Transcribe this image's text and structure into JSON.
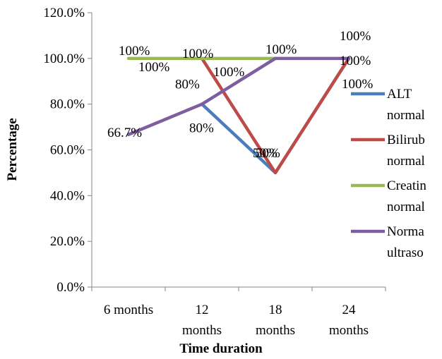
{
  "chart_data": {
    "type": "line",
    "categories": [
      "6 months",
      "12 months",
      "18 months",
      "24 months"
    ],
    "category_label_lines": [
      [
        "6 months"
      ],
      [
        "12",
        "months"
      ],
      [
        "18",
        "months"
      ],
      [
        "24",
        "months"
      ]
    ],
    "xlabel": "Time duration",
    "ylabel": "Percentage",
    "ylim": [
      0,
      120
    ],
    "yticks": [
      0,
      20,
      40,
      60,
      80,
      100,
      120
    ],
    "ytick_labels": [
      "0.0%",
      "20.0%",
      "40.0%",
      "60.0%",
      "80.0%",
      "100.0%",
      "120.0%"
    ],
    "grid": false,
    "legend_position": "right",
    "series": [
      {
        "name": "ALT normal",
        "legend_lines": [
          "ALT",
          "normal"
        ],
        "color": "#4a7ebb",
        "x": [
          "12 months",
          "18 months",
          "24 months"
        ],
        "values": [
          80,
          50,
          100
        ],
        "labels": [
          "80%",
          "50%",
          "100%"
        ]
      },
      {
        "name": "Bilirubin normal",
        "legend_lines": [
          "Bilirub",
          "normal"
        ],
        "color": "#be4b48",
        "x": [
          "12 months",
          "18 months",
          "24 months"
        ],
        "values": [
          100,
          50,
          100
        ],
        "labels": [
          "100%",
          "50%",
          "100%"
        ]
      },
      {
        "name": "Creatinine normal",
        "legend_lines": [
          "Creatin",
          "normal"
        ],
        "color": "#98b954",
        "x": [
          "6 months",
          "12 months",
          "18 months"
        ],
        "values": [
          100,
          100,
          100
        ],
        "labels": [
          "100%",
          "100%",
          "100%"
        ]
      },
      {
        "name": "Normal ultrasound",
        "legend_lines": [
          "Norma",
          "ultraso"
        ],
        "color": "#7d5fa0",
        "x": [
          "6 months",
          "12 months",
          "18 months",
          "24 months"
        ],
        "values": [
          66.7,
          80,
          100,
          100
        ],
        "labels": [
          "66.7%",
          "80%",
          "100%",
          "100%"
        ]
      }
    ]
  }
}
